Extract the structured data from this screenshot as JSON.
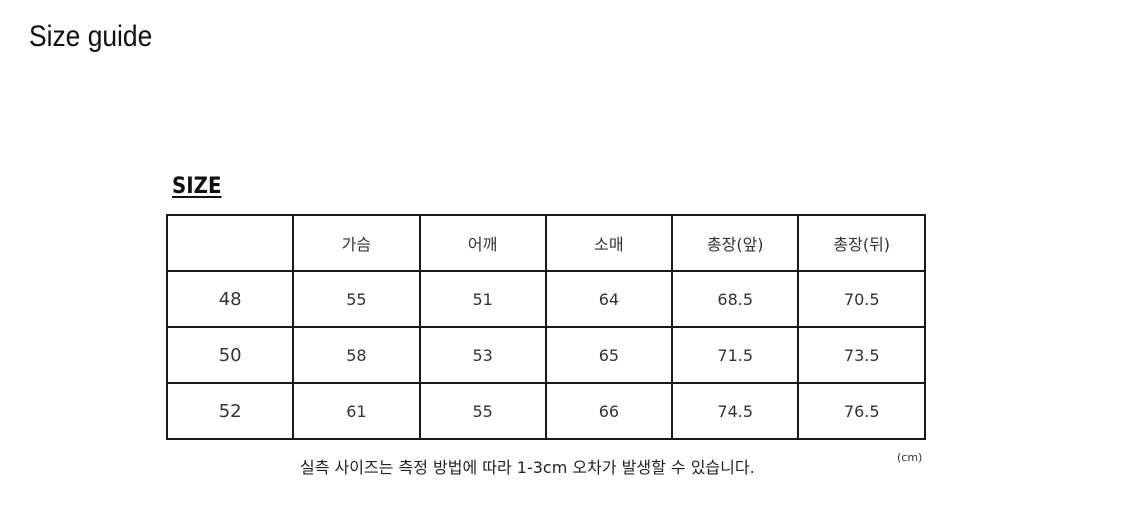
{
  "page_title": "Size guide",
  "section_heading": "SIZE",
  "table": {
    "headers": [
      "",
      "가슴",
      "어깨",
      "소매",
      "총장(앞)",
      "총장(뒤)"
    ],
    "rows": [
      [
        "48",
        "55",
        "51",
        "64",
        "68.5",
        "70.5"
      ],
      [
        "50",
        "58",
        "53",
        "65",
        "71.5",
        "73.5"
      ],
      [
        "52",
        "61",
        "55",
        "66",
        "74.5",
        "76.5"
      ]
    ]
  },
  "note": "실측 사이즈는 측정 방법에 따라 1-3cm 오차가 발생할 수 있습니다.",
  "unit": "(cm)"
}
